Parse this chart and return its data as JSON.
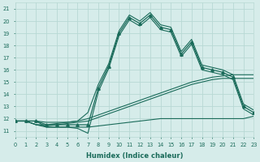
{
  "x": [
    0,
    1,
    2,
    3,
    4,
    5,
    6,
    7,
    8,
    9,
    10,
    11,
    12,
    13,
    14,
    15,
    16,
    17,
    18,
    19,
    20,
    21,
    22,
    23
  ],
  "line_main": [
    11.8,
    11.8,
    11.8,
    11.5,
    11.5,
    11.5,
    11.5,
    11.5,
    14.5,
    16.3,
    19.0,
    20.3,
    19.8,
    20.5,
    19.5,
    19.3,
    17.3,
    18.3,
    16.2,
    16.0,
    15.8,
    15.4,
    13.0,
    12.5
  ],
  "line_envelope_up": [
    11.8,
    11.8,
    11.8,
    11.7,
    11.7,
    11.7,
    11.8,
    12.5,
    14.8,
    16.5,
    19.2,
    20.5,
    20.0,
    20.7,
    19.7,
    19.5,
    17.5,
    18.5,
    16.4,
    16.2,
    16.0,
    15.6,
    13.2,
    12.7
  ],
  "line_envelope_low": [
    11.8,
    11.8,
    11.8,
    11.3,
    11.3,
    11.3,
    11.2,
    10.8,
    14.2,
    16.1,
    18.8,
    20.1,
    19.6,
    20.3,
    19.3,
    19.1,
    17.1,
    18.1,
    16.0,
    15.8,
    15.6,
    15.2,
    12.8,
    12.3
  ],
  "line_trend_upper": [
    11.8,
    11.8,
    11.5,
    11.5,
    11.6,
    11.7,
    11.8,
    12.0,
    12.3,
    12.6,
    12.9,
    13.2,
    13.5,
    13.8,
    14.1,
    14.4,
    14.7,
    15.0,
    15.2,
    15.4,
    15.5,
    15.6,
    15.6,
    15.6
  ],
  "line_trend_main": [
    11.8,
    11.8,
    11.5,
    11.4,
    11.5,
    11.6,
    11.7,
    11.8,
    12.1,
    12.4,
    12.7,
    13.0,
    13.3,
    13.6,
    13.9,
    14.2,
    14.5,
    14.8,
    15.0,
    15.2,
    15.3,
    15.3,
    15.3,
    15.3
  ],
  "line_flat_bottom": [
    11.8,
    11.8,
    11.5,
    11.3,
    11.3,
    11.3,
    11.3,
    11.3,
    11.4,
    11.5,
    11.6,
    11.7,
    11.8,
    11.9,
    12.0,
    12.0,
    12.0,
    12.0,
    12.0,
    12.0,
    12.0,
    12.0,
    12.0,
    12.2
  ],
  "color": "#1a6b5a",
  "bg_color": "#d6ecea",
  "grid_color": "#b8d8d4",
  "xlim": [
    0,
    23
  ],
  "ylim": [
    10.5,
    21.5
  ],
  "xlabel": "Humidex (Indice chaleur)",
  "yticks": [
    11,
    12,
    13,
    14,
    15,
    16,
    17,
    18,
    19,
    20,
    21
  ],
  "xticks": [
    0,
    1,
    2,
    3,
    4,
    5,
    6,
    7,
    8,
    9,
    10,
    11,
    12,
    13,
    14,
    15,
    16,
    17,
    18,
    19,
    20,
    21,
    22,
    23
  ]
}
